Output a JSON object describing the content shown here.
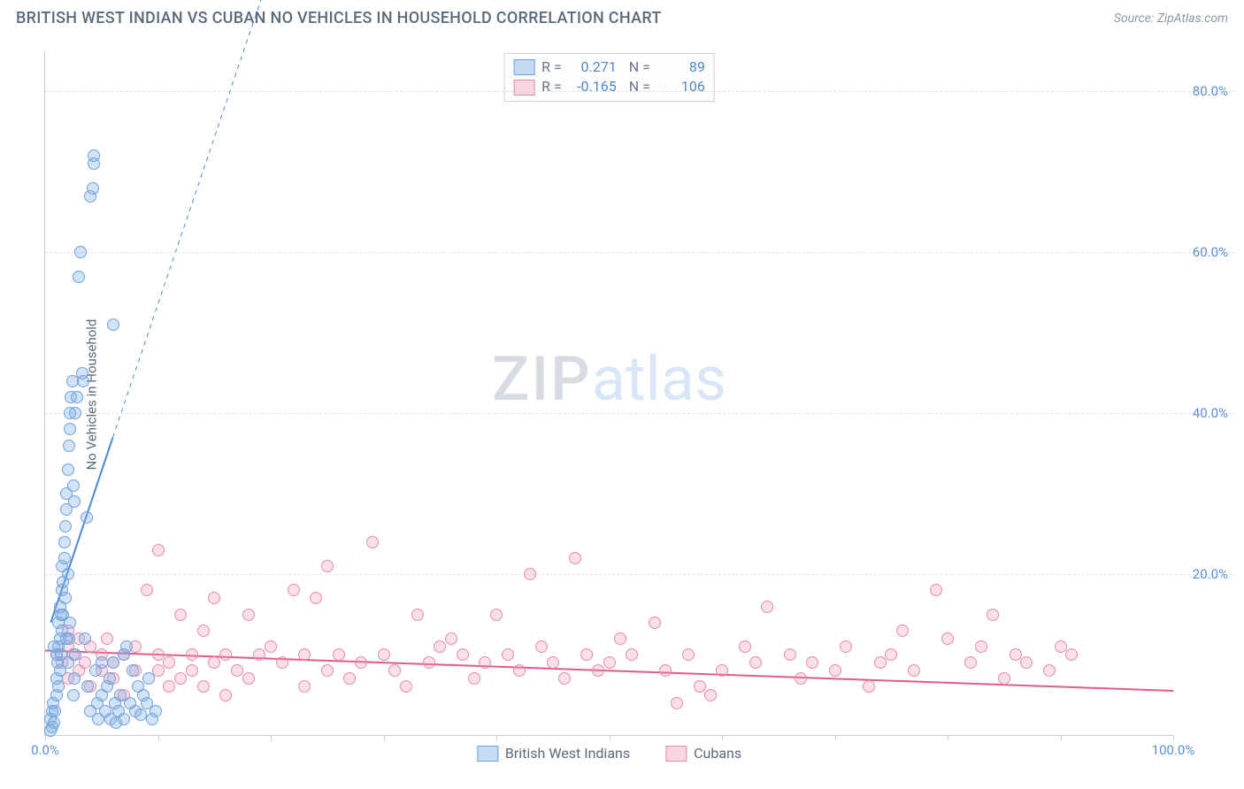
{
  "header": {
    "title": "BRITISH WEST INDIAN VS CUBAN NO VEHICLES IN HOUSEHOLD CORRELATION CHART",
    "source": "Source: ZipAtlas.com"
  },
  "watermark": {
    "part1": "ZIP",
    "part2": "atlas"
  },
  "axes": {
    "ylabel": "No Vehicles in Household",
    "xmin": 0,
    "xmax": 100,
    "ymin": 0,
    "ymax": 85,
    "yticks": [
      20,
      40,
      60,
      80
    ],
    "ytick_labels": [
      "20.0%",
      "40.0%",
      "60.0%",
      "80.0%"
    ],
    "xticks": [
      0,
      10,
      20,
      30,
      40,
      50,
      60,
      70,
      80,
      90,
      100
    ],
    "xtick_labels_shown": {
      "0": "0.0%",
      "100": "100.0%"
    },
    "grid_color": "#dfe3e8",
    "axis_color": "#c7cdd4",
    "tick_label_color": "#5b8fd6"
  },
  "series": {
    "blue": {
      "label": "British West Indians",
      "fill": "rgba(129,172,227,0.35)",
      "stroke": "#6fa3dd",
      "marker_r": 7,
      "R": "0.271",
      "N": "89",
      "trend": {
        "x1": 0.5,
        "y1": 14,
        "x2": 6,
        "y2": 37,
        "dash_x2": 20,
        "dash_y2": 95,
        "color": "#4d89d4",
        "width": 2
      },
      "points": [
        [
          0.5,
          2
        ],
        [
          0.6,
          3
        ],
        [
          0.6,
          1
        ],
        [
          0.7,
          4
        ],
        [
          0.8,
          1.5
        ],
        [
          0.9,
          3
        ],
        [
          1.0,
          5
        ],
        [
          1.0,
          7
        ],
        [
          1.1,
          9
        ],
        [
          1.2,
          6
        ],
        [
          1.2,
          11
        ],
        [
          1.2,
          14
        ],
        [
          1.3,
          8
        ],
        [
          1.3,
          12
        ],
        [
          1.3,
          16
        ],
        [
          1.4,
          10
        ],
        [
          1.5,
          13
        ],
        [
          1.5,
          18
        ],
        [
          1.5,
          21
        ],
        [
          1.6,
          15
        ],
        [
          1.6,
          19
        ],
        [
          1.7,
          22
        ],
        [
          1.7,
          24
        ],
        [
          1.8,
          17
        ],
        [
          1.8,
          26
        ],
        [
          1.9,
          28
        ],
        [
          1.9,
          30
        ],
        [
          2.0,
          33
        ],
        [
          2.0,
          20
        ],
        [
          2.0,
          9
        ],
        [
          2.1,
          12
        ],
        [
          2.1,
          36
        ],
        [
          2.2,
          38
        ],
        [
          2.2,
          40
        ],
        [
          2.3,
          42
        ],
        [
          2.4,
          44
        ],
        [
          2.5,
          31
        ],
        [
          2.5,
          5
        ],
        [
          2.6,
          7
        ],
        [
          2.7,
          10
        ],
        [
          2.7,
          40
        ],
        [
          2.8,
          42
        ],
        [
          3.0,
          57
        ],
        [
          3.1,
          60
        ],
        [
          3.3,
          45
        ],
        [
          3.4,
          44
        ],
        [
          3.5,
          12
        ],
        [
          3.7,
          27
        ],
        [
          3.8,
          6
        ],
        [
          4.0,
          3
        ],
        [
          4.0,
          67
        ],
        [
          4.2,
          68
        ],
        [
          4.3,
          71
        ],
        [
          4.3,
          72
        ],
        [
          4.5,
          8
        ],
        [
          4.6,
          4
        ],
        [
          4.7,
          2
        ],
        [
          5.0,
          5
        ],
        [
          5.0,
          9
        ],
        [
          5.3,
          3
        ],
        [
          5.5,
          6
        ],
        [
          5.7,
          7
        ],
        [
          5.8,
          2
        ],
        [
          6.0,
          9
        ],
        [
          6.0,
          51
        ],
        [
          6.2,
          4
        ],
        [
          6.3,
          1.5
        ],
        [
          6.5,
          3
        ],
        [
          6.7,
          5
        ],
        [
          7.0,
          2
        ],
        [
          7.0,
          10
        ],
        [
          7.2,
          11
        ],
        [
          7.5,
          4
        ],
        [
          7.8,
          8
        ],
        [
          8.0,
          3
        ],
        [
          8.2,
          6
        ],
        [
          8.5,
          2.5
        ],
        [
          8.7,
          5
        ],
        [
          9.0,
          4
        ],
        [
          9.2,
          7
        ],
        [
          9.5,
          2
        ],
        [
          9.8,
          3
        ],
        [
          0.8,
          11
        ],
        [
          1.0,
          10
        ],
        [
          1.4,
          15
        ],
        [
          1.9,
          12
        ],
        [
          2.2,
          14
        ],
        [
          2.6,
          29
        ],
        [
          0.5,
          0.5
        ]
      ]
    },
    "pink": {
      "label": "Cubans",
      "fill": "rgba(236,150,180,0.3)",
      "stroke": "#e88bad",
      "marker_r": 7,
      "R": "-0.165",
      "N": "106",
      "trend": {
        "x1": 0,
        "y1": 10.5,
        "x2": 100,
        "y2": 5.5,
        "color": "#e05a8c",
        "width": 2
      },
      "points": [
        [
          1,
          10
        ],
        [
          1.5,
          9
        ],
        [
          2,
          11
        ],
        [
          2,
          7
        ],
        [
          2,
          13
        ],
        [
          2.5,
          10
        ],
        [
          3,
          8
        ],
        [
          3,
          12
        ],
        [
          3.5,
          9
        ],
        [
          4,
          11
        ],
        [
          4,
          6
        ],
        [
          5,
          10
        ],
        [
          5,
          8
        ],
        [
          5.5,
          12
        ],
        [
          6,
          9
        ],
        [
          6,
          7
        ],
        [
          7,
          10
        ],
        [
          7,
          5
        ],
        [
          8,
          11
        ],
        [
          8,
          8
        ],
        [
          9,
          18
        ],
        [
          10,
          10
        ],
        [
          10,
          8
        ],
        [
          10,
          23
        ],
        [
          11,
          6
        ],
        [
          11,
          9
        ],
        [
          12,
          15
        ],
        [
          12,
          7
        ],
        [
          13,
          10
        ],
        [
          13,
          8
        ],
        [
          14,
          6
        ],
        [
          14,
          13
        ],
        [
          15,
          17
        ],
        [
          15,
          9
        ],
        [
          16,
          10
        ],
        [
          16,
          5
        ],
        [
          17,
          8
        ],
        [
          18,
          15
        ],
        [
          18,
          7
        ],
        [
          19,
          10
        ],
        [
          20,
          11
        ],
        [
          21,
          9
        ],
        [
          22,
          18
        ],
        [
          23,
          6
        ],
        [
          23,
          10
        ],
        [
          24,
          17
        ],
        [
          25,
          8
        ],
        [
          25,
          21
        ],
        [
          26,
          10
        ],
        [
          27,
          7
        ],
        [
          28,
          9
        ],
        [
          29,
          24
        ],
        [
          30,
          10
        ],
        [
          31,
          8
        ],
        [
          32,
          6
        ],
        [
          33,
          15
        ],
        [
          34,
          9
        ],
        [
          35,
          11
        ],
        [
          36,
          12
        ],
        [
          37,
          10
        ],
        [
          38,
          7
        ],
        [
          39,
          9
        ],
        [
          40,
          15
        ],
        [
          41,
          10
        ],
        [
          42,
          8
        ],
        [
          43,
          20
        ],
        [
          44,
          11
        ],
        [
          45,
          9
        ],
        [
          46,
          7
        ],
        [
          47,
          22
        ],
        [
          48,
          10
        ],
        [
          49,
          8
        ],
        [
          50,
          9
        ],
        [
          51,
          12
        ],
        [
          52,
          10
        ],
        [
          54,
          14
        ],
        [
          55,
          8
        ],
        [
          56,
          4
        ],
        [
          57,
          10
        ],
        [
          58,
          6
        ],
        [
          59,
          5
        ],
        [
          60,
          8
        ],
        [
          62,
          11
        ],
        [
          63,
          9
        ],
        [
          64,
          16
        ],
        [
          66,
          10
        ],
        [
          67,
          7
        ],
        [
          68,
          9
        ],
        [
          70,
          8
        ],
        [
          71,
          11
        ],
        [
          73,
          6
        ],
        [
          74,
          9
        ],
        [
          75,
          10
        ],
        [
          76,
          13
        ],
        [
          77,
          8
        ],
        [
          79,
          18
        ],
        [
          80,
          12
        ],
        [
          82,
          9
        ],
        [
          83,
          11
        ],
        [
          84,
          15
        ],
        [
          85,
          7
        ],
        [
          86,
          10
        ],
        [
          87,
          9
        ],
        [
          89,
          8
        ],
        [
          90,
          11
        ],
        [
          91,
          10
        ]
      ]
    }
  },
  "stats_box": {
    "rows": [
      {
        "swatch_fill": "rgba(129,172,227,0.45)",
        "swatch_border": "#6fa3dd",
        "r_label": "R =",
        "r_val": "0.271",
        "n_label": "N =",
        "n_val": "89"
      },
      {
        "swatch_fill": "rgba(236,150,180,0.4)",
        "swatch_border": "#e88bad",
        "r_label": "R =",
        "r_val": "-0.165",
        "n_label": "N =",
        "n_val": "106"
      }
    ]
  },
  "bottom_legend": [
    {
      "swatch_fill": "rgba(129,172,227,0.45)",
      "swatch_border": "#6fa3dd",
      "label": "British West Indians"
    },
    {
      "swatch_fill": "rgba(236,150,180,0.4)",
      "swatch_border": "#e88bad",
      "label": "Cubans"
    }
  ]
}
